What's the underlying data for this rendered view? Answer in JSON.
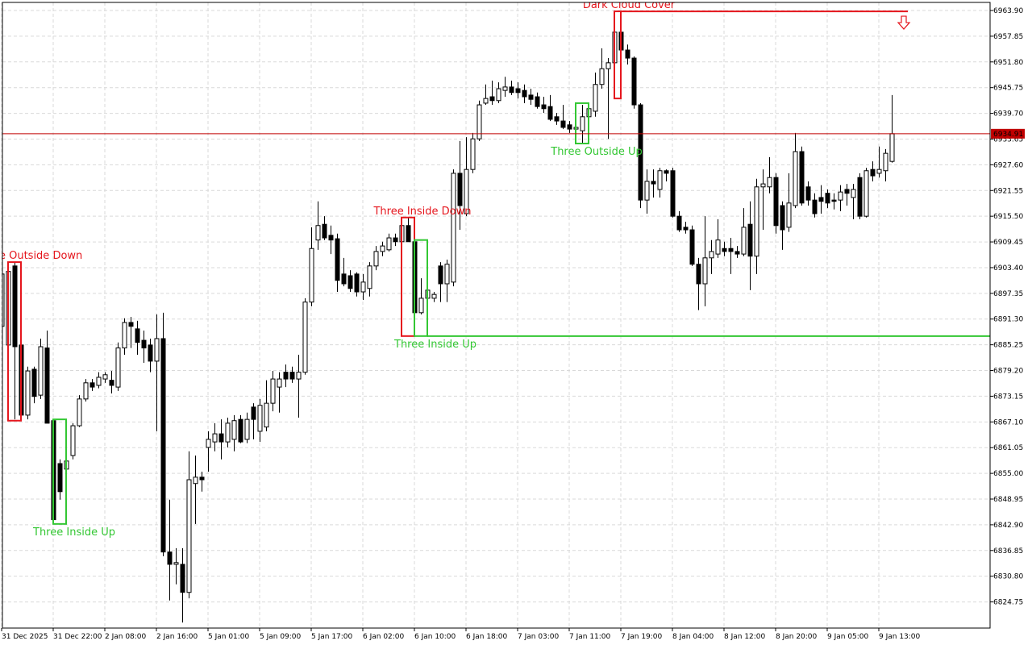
{
  "chart_data": {
    "type": "candlestick",
    "categories": [
      "31 Dec 2025",
      null,
      null,
      null,
      null,
      null,
      null,
      null,
      "31 Dec 22:00",
      null,
      null,
      null,
      null,
      null,
      null,
      null,
      "2 Jan 08:00",
      null,
      null,
      null,
      null,
      null,
      null,
      null,
      "2 Jan 16:00",
      null,
      null,
      null,
      null,
      null,
      null,
      null,
      "5 Jan 01:00",
      null,
      null,
      null,
      null,
      null,
      null,
      null,
      "5 Jan 09:00",
      null,
      null,
      null,
      null,
      null,
      null,
      null,
      "5 Jan 17:00",
      null,
      null,
      null,
      null,
      null,
      null,
      null,
      "6 Jan 02:00",
      null,
      null,
      null,
      null,
      null,
      null,
      null,
      "6 Jan 10:00",
      null,
      null,
      null,
      null,
      null,
      null,
      null,
      "6 Jan 18:00",
      null,
      null,
      null,
      null,
      null,
      null,
      null,
      "7 Jan 03:00",
      null,
      null,
      null,
      null,
      null,
      null,
      null,
      "7 Jan 11:00",
      null,
      null,
      null,
      null,
      null,
      null,
      null,
      "7 Jan 19:00",
      null,
      null,
      null,
      null,
      null,
      null,
      null,
      "8 Jan 04:00",
      null,
      null,
      null,
      null,
      null,
      null,
      null,
      "8 Jan 12:00",
      null,
      null,
      null,
      null,
      null,
      null,
      null,
      "8 Jan 20:00",
      null,
      null,
      null,
      null,
      null,
      null,
      null,
      "9 Jan 05:00",
      null,
      null,
      null,
      null,
      null,
      null,
      null,
      "9 Jan 13:00",
      null,
      null
    ],
    "open": [
      6889.6,
      6885.2,
      6903.8,
      6885.2,
      6868.7,
      6879.5,
      6873.4,
      6884.5,
      6867.4,
      6857.3,
      6856.0,
      6859.2,
      6866.2,
      6872.5,
      6876.3,
      6875.7,
      6877.2,
      6876.9,
      6875.3,
      6884.5,
      6890.5,
      6889.0,
      6886.3,
      6885.2,
      6881.4,
      6886.7,
      6836.5,
      6833.6,
      6833.6,
      6827.0,
      6852.6,
      6854.1,
      6861.1,
      6862.4,
      6864.3,
      6862.4,
      6863.0,
      6867.7,
      6863.0,
      6870.6,
      6864.9,
      6865.9,
      6871.5,
      6875.3,
      6878.8,
      6878.8,
      6877.2,
      6878.8,
      6895.3,
      6909.9,
      6913.6,
      6911.0,
      6910.2,
      6901.9,
      6901.5,
      6901.9,
      6897.7,
      6898.5,
      6903.8,
      6907.2,
      6907.6,
      6910.4,
      6909.5,
      6913.3,
      6909.5,
      6892.8,
      6896.2,
      6896.2,
      6903.8,
      6899.6,
      6900.0,
      6925.6,
      6916.1,
      6926.5,
      6933.7,
      6942.1,
      6943.6,
      6942.7,
      6945.1,
      6945.9,
      6945.5,
      6945.1,
      6944.0,
      6943.6,
      6941.7,
      6941.3,
      6938.9,
      6937.9,
      6937.0,
      6936.0,
      6935.6,
      6938.9,
      6940.2,
      6946.5,
      6950.2,
      6951.6,
      6958.8,
      6954.6,
      6952.7,
      6941.7,
      6919.3,
      6923.7,
      6921.8,
      6926.2,
      6926.2,
      6915.5,
      6912.9,
      6912.3,
      6904.2,
      6899.6,
      6905.7,
      6906.6,
      6907.9,
      6907.9,
      6907.2,
      6906.6,
      6913.6,
      6906.1,
      6922.4,
      6922.4,
      6924.6,
      6918.0,
      6912.9,
      6918.0,
      6930.7,
      6922.4,
      6919.3,
      6919.9,
      6920.9,
      6919.3,
      6919.3,
      6921.8,
      6919.9,
      6924.6,
      6915.5,
      6926.5,
      6925.6,
      6926.2,
      6928.4
    ],
    "high": [
      6905.7,
      6904.7,
      6904.7,
      6885.8,
      6880.1,
      6880.1,
      6886.7,
      6888.6,
      6867.7,
      6858.3,
      6859.2,
      6866.8,
      6873.4,
      6877.2,
      6877.2,
      6878.8,
      6878.8,
      6879.1,
      6885.8,
      6891.5,
      6891.8,
      6890.9,
      6888.6,
      6886.7,
      6892.4,
      6892.8,
      6848.8,
      6837.4,
      6837.4,
      6860.2,
      6859.2,
      6855.4,
      6864.9,
      6866.8,
      6867.7,
      6868.1,
      6868.7,
      6868.7,
      6869.3,
      6871.5,
      6872.5,
      6876.9,
      6879.1,
      6878.8,
      6880.6,
      6880.1,
      6882.9,
      6896.2,
      6912.9,
      6919.0,
      6915.5,
      6913.3,
      6911.4,
      6905.7,
      6902.8,
      6902.3,
      6901.9,
      6904.7,
      6908.5,
      6909.5,
      6911.4,
      6911.4,
      6915.2,
      6915.2,
      6909.9,
      6900.9,
      6898.5,
      6897.7,
      6904.7,
      6905.3,
      6926.5,
      6933.2,
      6934.1,
      6935.1,
      6942.7,
      6946.5,
      6947.4,
      6947.0,
      6948.3,
      6947.4,
      6947.0,
      6946.5,
      6945.5,
      6944.6,
      6943.6,
      6944.0,
      6939.8,
      6941.7,
      6937.9,
      6939.8,
      6941.7,
      6942.1,
      6949.3,
      6955.0,
      6952.7,
      6959.7,
      6963.7,
      6955.9,
      6953.1,
      6942.1,
      6926.5,
      6926.5,
      6926.9,
      6926.5,
      6926.9,
      6916.7,
      6914.2,
      6913.3,
      6905.7,
      6915.5,
      6909.9,
      6914.8,
      6909.5,
      6910.4,
      6908.5,
      6917.4,
      6919.0,
      6924.3,
      6926.5,
      6929.4,
      6925.6,
      6919.0,
      6925.6,
      6935.1,
      6931.9,
      6923.7,
      6920.9,
      6922.8,
      6921.8,
      6920.9,
      6922.8,
      6923.1,
      6923.1,
      6925.6,
      6926.9,
      6928.4,
      6931.9,
      6931.3,
      6944.0
    ],
    "low": [
      6888.6,
      6884.8,
      6867.7,
      6867.4,
      6867.7,
      6871.5,
      6872.5,
      6866.8,
      6843.1,
      6848.8,
      6854.5,
      6858.3,
      6865.9,
      6871.9,
      6874.4,
      6875.0,
      6876.3,
      6873.8,
      6874.4,
      6882.9,
      6884.5,
      6882.9,
      6881.0,
      6878.8,
      6864.9,
      6835.5,
      6825.1,
      6828.9,
      6819.9,
      6825.6,
      6843.1,
      6850.7,
      6855.4,
      6860.2,
      6858.3,
      6861.1,
      6860.2,
      6862.1,
      6862.1,
      6863.0,
      6862.4,
      6864.9,
      6869.6,
      6869.3,
      6875.3,
      6876.3,
      6868.1,
      6878.2,
      6894.3,
      6907.6,
      6909.9,
      6906.6,
      6897.7,
      6899.0,
      6897.7,
      6896.6,
      6895.8,
      6896.6,
      6902.8,
      6906.1,
      6907.2,
      6908.5,
      6909.1,
      6909.5,
      6887.3,
      6892.4,
      6895.3,
      6895.3,
      6895.3,
      6895.3,
      6899.0,
      6912.3,
      6915.5,
      6925.6,
      6933.2,
      6941.7,
      6941.7,
      6942.1,
      6943.6,
      6944.0,
      6943.2,
      6942.1,
      6941.7,
      6940.8,
      6939.8,
      6937.9,
      6937.0,
      6936.0,
      6935.1,
      6933.7,
      6932.6,
      6937.9,
      6938.9,
      6945.5,
      6933.7,
      6943.2,
      6944.6,
      6951.2,
      6940.8,
      6917.4,
      6916.1,
      6919.9,
      6919.9,
      6923.7,
      6915.2,
      6911.8,
      6911.4,
      6903.8,
      6893.4,
      6894.3,
      6901.9,
      6905.7,
      6906.1,
      6901.9,
      6905.7,
      6906.1,
      6898.1,
      6901.9,
      6912.3,
      6920.9,
      6911.4,
      6907.6,
      6911.8,
      6917.4,
      6918.0,
      6918.0,
      6915.2,
      6916.1,
      6917.4,
      6917.1,
      6916.7,
      6918.0,
      6914.8,
      6914.8,
      6915.2,
      6923.7,
      6924.6,
      6923.7,
      6928.1
    ],
    "close": [
      6901.9,
      6902.5,
      6884.8,
      6868.7,
      6879.1,
      6873.1,
      6884.8,
      6866.8,
      6844.1,
      6850.7,
      6857.9,
      6866.2,
      6872.5,
      6876.3,
      6875.3,
      6877.6,
      6878.2,
      6875.7,
      6884.5,
      6890.5,
      6889.6,
      6885.8,
      6884.5,
      6881.4,
      6886.7,
      6836.5,
      6833.6,
      6834.0,
      6827.0,
      6853.5,
      6854.1,
      6853.5,
      6863.0,
      6864.3,
      6862.4,
      6866.8,
      6867.4,
      6862.4,
      6867.7,
      6867.7,
      6871.0,
      6871.5,
      6877.2,
      6877.2,
      6877.2,
      6877.2,
      6878.8,
      6895.3,
      6907.9,
      6913.3,
      6910.4,
      6909.9,
      6900.4,
      6899.6,
      6898.5,
      6897.7,
      6900.0,
      6903.8,
      6907.2,
      6908.5,
      6910.4,
      6909.5,
      6913.3,
      6909.5,
      6892.8,
      6896.2,
      6898.1,
      6897.1,
      6899.6,
      6904.2,
      6925.6,
      6918.0,
      6926.5,
      6933.7,
      6941.7,
      6943.2,
      6942.7,
      6945.5,
      6945.9,
      6944.6,
      6944.6,
      6943.6,
      6943.0,
      6941.3,
      6940.8,
      6938.3,
      6937.9,
      6936.4,
      6936.0,
      6936.4,
      6938.9,
      6940.8,
      6946.5,
      6950.2,
      6951.6,
      6958.8,
      6954.6,
      6952.7,
      6941.7,
      6919.3,
      6923.7,
      6923.1,
      6926.2,
      6925.6,
      6915.5,
      6912.3,
      6912.3,
      6904.2,
      6899.6,
      6905.7,
      6907.2,
      6909.9,
      6907.2,
      6907.2,
      6906.6,
      6912.9,
      6906.1,
      6922.4,
      6923.1,
      6924.6,
      6913.3,
      6912.3,
      6918.6,
      6930.7,
      6918.6,
      6919.3,
      6916.1,
      6919.0,
      6918.6,
      6919.0,
      6921.2,
      6920.9,
      6921.8,
      6915.5,
      6926.2,
      6925.0,
      6926.5,
      6930.3,
      6934.91
    ],
    "up_color": "#ffffff",
    "down_color": "#000000",
    "ylim": [
      6818.6,
      6965.8
    ],
    "yticks": [
      6824.75,
      {
        "value": 6830.8,
        "label": "6830.80"
      },
      6836.85,
      {
        "value": 6842.9,
        "label": "6842.90"
      },
      6848.95,
      {
        "value": 6855.0,
        "label": "6855.00"
      },
      6861.05,
      {
        "value": 6867.1,
        "label": "6867.10"
      },
      6873.15,
      {
        "value": 6879.2,
        "label": "6879.20"
      },
      6885.25,
      {
        "value": 6891.3,
        "label": "6891.30"
      },
      6897.35,
      {
        "value": 6903.4,
        "label": "6903.40"
      },
      6909.45,
      {
        "value": 6915.5,
        "label": "6915.50"
      },
      6921.55,
      {
        "value": 6927.6,
        "label": "6927.60"
      },
      6933.65,
      {
        "value": 6939.7,
        "label": "6939.70"
      },
      6945.75,
      {
        "value": 6951.8,
        "label": "6951.80"
      },
      6957.85,
      {
        "value": 6963.9,
        "label": "6963.90"
      }
    ],
    "grid": true,
    "current_price": 6934.91,
    "current_price_color": "#c00000",
    "patterns": [
      {
        "label": "Three Outside Down",
        "color": "#e5161d",
        "start": 1,
        "end": 3
      },
      {
        "label": "Three Inside Up",
        "color": "#33c733",
        "start": 8,
        "end": 10
      },
      {
        "label": "Three Inside Down",
        "color": "#e5161d",
        "start": 62,
        "end": 64
      },
      {
        "label": "Three Inside Up",
        "color": "#33c733",
        "start": 64,
        "end": 66
      },
      {
        "label": "Three Outside Up",
        "color": "#33c733",
        "start": 89,
        "end": 91
      },
      {
        "label": "Dark Cloud Cover",
        "color": "#e5161d",
        "start": 95,
        "end": 96
      }
    ]
  }
}
